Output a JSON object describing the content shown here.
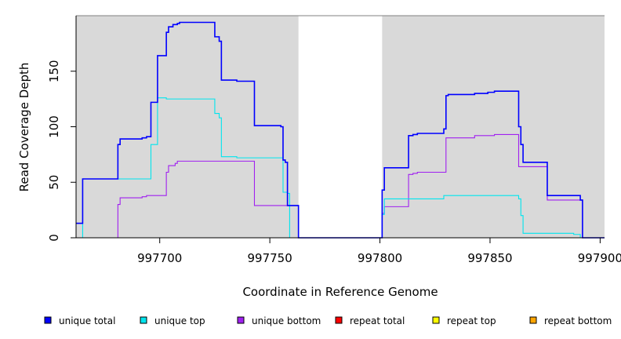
{
  "chart_data": {
    "type": "line",
    "xlabel": "Coordinate in Reference Genome",
    "ylabel": "Read Coverage Depth",
    "xlim": [
      997662,
      997902
    ],
    "ylim": [
      0,
      200
    ],
    "x_ticks": [
      997700,
      997750,
      997800,
      997850,
      997900
    ],
    "x_tick_labels": [
      "997700",
      "997750",
      "997800",
      "997850",
      "997900"
    ],
    "y_ticks": [
      0,
      50,
      100,
      150
    ],
    "y_tick_labels": [
      "0",
      "50",
      "100",
      "150"
    ],
    "background": "#d9d9d9",
    "grid": false,
    "legend_position": "bottom",
    "shaded_regions": [
      {
        "x0": 997662,
        "x1": 997763
      },
      {
        "x0": 997801,
        "x1": 997902
      }
    ],
    "series": [
      {
        "name": "unique total",
        "color": "#0000ff",
        "points": [
          [
            997662,
            13
          ],
          [
            997665,
            13
          ],
          [
            997665,
            53
          ],
          [
            997678,
            53
          ],
          [
            997678,
            53
          ],
          [
            997681,
            53
          ],
          [
            997681,
            84
          ],
          [
            997682,
            84
          ],
          [
            997682,
            89
          ],
          [
            997686,
            89
          ],
          [
            997692,
            89
          ],
          [
            997692,
            90
          ],
          [
            997694,
            90
          ],
          [
            997694,
            91
          ],
          [
            997696,
            91
          ],
          [
            997696,
            122
          ],
          [
            997699,
            122
          ],
          [
            997699,
            164
          ],
          [
            997703,
            164
          ],
          [
            997703,
            185
          ],
          [
            997704,
            185
          ],
          [
            997704,
            190
          ],
          [
            997706,
            190
          ],
          [
            997706,
            192
          ],
          [
            997708,
            192
          ],
          [
            997708,
            193
          ],
          [
            997709,
            193
          ],
          [
            997709,
            194
          ],
          [
            997725,
            194
          ],
          [
            997725,
            181
          ],
          [
            997727,
            181
          ],
          [
            997727,
            177
          ],
          [
            997728,
            177
          ],
          [
            997728,
            142
          ],
          [
            997735,
            142
          ],
          [
            997735,
            141
          ],
          [
            997743,
            141
          ],
          [
            997743,
            101
          ],
          [
            997755,
            101
          ],
          [
            997755,
            100
          ],
          [
            997756,
            100
          ],
          [
            997756,
            70
          ],
          [
            997757,
            70
          ],
          [
            997757,
            68
          ],
          [
            997758,
            68
          ],
          [
            997758,
            29
          ],
          [
            997763,
            29
          ],
          [
            997763,
            0
          ],
          [
            997801,
            0
          ],
          [
            997801,
            43
          ],
          [
            997802,
            43
          ],
          [
            997802,
            63
          ],
          [
            997813,
            63
          ],
          [
            997813,
            92
          ],
          [
            997815,
            92
          ],
          [
            997815,
            93
          ],
          [
            997817,
            93
          ],
          [
            997817,
            94
          ],
          [
            997829,
            94
          ],
          [
            997829,
            98
          ],
          [
            997830,
            98
          ],
          [
            997830,
            128
          ],
          [
            997831,
            128
          ],
          [
            997831,
            129
          ],
          [
            997843,
            129
          ],
          [
            997843,
            130
          ],
          [
            997849,
            130
          ],
          [
            997849,
            131
          ],
          [
            997852,
            131
          ],
          [
            997852,
            132
          ],
          [
            997863,
            132
          ],
          [
            997863,
            100
          ],
          [
            997864,
            100
          ],
          [
            997864,
            84
          ],
          [
            997865,
            84
          ],
          [
            997865,
            68
          ],
          [
            997876,
            68
          ],
          [
            997876,
            38
          ],
          [
            997891,
            38
          ],
          [
            997891,
            34
          ],
          [
            997892,
            34
          ],
          [
            997892,
            0
          ],
          [
            997902,
            0
          ]
        ]
      },
      {
        "name": "unique top",
        "color": "#00e5ee",
        "points": [
          [
            997662,
            0
          ],
          [
            997665,
            0
          ],
          [
            997665,
            53
          ],
          [
            997696,
            53
          ],
          [
            997696,
            84
          ],
          [
            997699,
            84
          ],
          [
            997699,
            126
          ],
          [
            997703,
            126
          ],
          [
            997703,
            125
          ],
          [
            997708,
            125
          ],
          [
            997708,
            125
          ],
          [
            997725,
            125
          ],
          [
            997725,
            112
          ],
          [
            997727,
            112
          ],
          [
            997727,
            108
          ],
          [
            997728,
            108
          ],
          [
            997728,
            73
          ],
          [
            997735,
            73
          ],
          [
            997735,
            72
          ],
          [
            997756,
            72
          ],
          [
            997756,
            41
          ],
          [
            997758,
            41
          ],
          [
            997758,
            40
          ],
          [
            997759,
            40
          ],
          [
            997759,
            0
          ],
          [
            997801,
            0
          ],
          [
            997801,
            21
          ],
          [
            997802,
            21
          ],
          [
            997802,
            35
          ],
          [
            997829,
            35
          ],
          [
            997829,
            38
          ],
          [
            997863,
            38
          ],
          [
            997863,
            35
          ],
          [
            997864,
            35
          ],
          [
            997864,
            20
          ],
          [
            997865,
            20
          ],
          [
            997865,
            4
          ],
          [
            997888,
            4
          ],
          [
            997888,
            3
          ],
          [
            997891,
            3
          ],
          [
            997891,
            0
          ],
          [
            997902,
            0
          ]
        ]
      },
      {
        "name": "unique bottom",
        "color": "#a020f0",
        "points": [
          [
            997662,
            0
          ],
          [
            997681,
            0
          ],
          [
            997681,
            30
          ],
          [
            997682,
            30
          ],
          [
            997682,
            36
          ],
          [
            997692,
            36
          ],
          [
            997692,
            37
          ],
          [
            997694,
            37
          ],
          [
            997694,
            38
          ],
          [
            997703,
            38
          ],
          [
            997703,
            59
          ],
          [
            997704,
            59
          ],
          [
            997704,
            65
          ],
          [
            997707,
            65
          ],
          [
            997707,
            67
          ],
          [
            997708,
            67
          ],
          [
            997708,
            69
          ],
          [
            997743,
            69
          ],
          [
            997743,
            29
          ],
          [
            997763,
            29
          ],
          [
            997763,
            0
          ],
          [
            997801,
            0
          ],
          [
            997801,
            22
          ],
          [
            997802,
            22
          ],
          [
            997802,
            28
          ],
          [
            997813,
            28
          ],
          [
            997813,
            57
          ],
          [
            997815,
            57
          ],
          [
            997815,
            58
          ],
          [
            997817,
            58
          ],
          [
            997817,
            59
          ],
          [
            997830,
            59
          ],
          [
            997830,
            90
          ],
          [
            997843,
            90
          ],
          [
            997843,
            92
          ],
          [
            997852,
            92
          ],
          [
            997852,
            93
          ],
          [
            997863,
            93
          ],
          [
            997863,
            64
          ],
          [
            997876,
            64
          ],
          [
            997876,
            34
          ],
          [
            997892,
            34
          ],
          [
            997892,
            0
          ],
          [
            997902,
            0
          ]
        ]
      },
      {
        "name": "repeat total",
        "color": "#ff0000",
        "points": [
          [
            997662,
            0
          ],
          [
            997902,
            0
          ]
        ]
      },
      {
        "name": "repeat top",
        "color": "#ffff00",
        "points": [
          [
            997662,
            0
          ],
          [
            997902,
            0
          ]
        ]
      },
      {
        "name": "repeat bottom",
        "color": "#ffa500",
        "points": [
          [
            997662,
            0
          ],
          [
            997902,
            0
          ]
        ]
      }
    ]
  }
}
